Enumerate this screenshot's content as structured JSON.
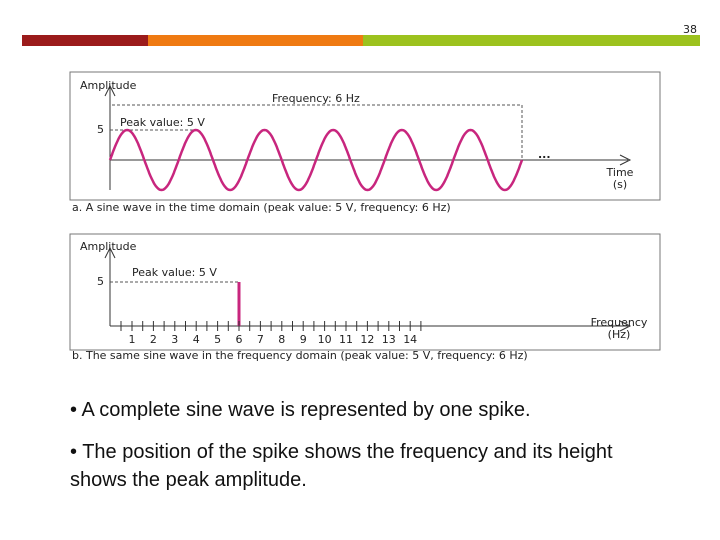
{
  "page_number": "38",
  "figure_a": {
    "y_label": "Amplitude",
    "frequency_label": "Frequency: 6 Hz",
    "peak_label": "Peak value: 5 V",
    "y_tick": "5",
    "ellipsis": "...",
    "x_label_1": "Time",
    "x_label_2": "(s)",
    "caption": "a. A sine wave in the time domain (peak value: 5 V, frequency: 6 Hz)"
  },
  "figure_b": {
    "y_label": "Amplitude",
    "peak_label": "Peak value: 5 V",
    "y_tick": "5",
    "x_ticks": [
      "1",
      "2",
      "3",
      "4",
      "5",
      "6",
      "7",
      "8",
      "9",
      "10",
      "11",
      "12",
      "13",
      "14"
    ],
    "x_label_1": "Frequency",
    "x_label_2": "(Hz)",
    "caption": "b. The same sine wave in the frequency domain (peak value: 5 V, frequency: 6 Hz)"
  },
  "bullets": [
    "• A complete sine wave is represented by one spike.",
    "• The position of the spike shows the frequency and its height shows the peak amplitude."
  ]
}
